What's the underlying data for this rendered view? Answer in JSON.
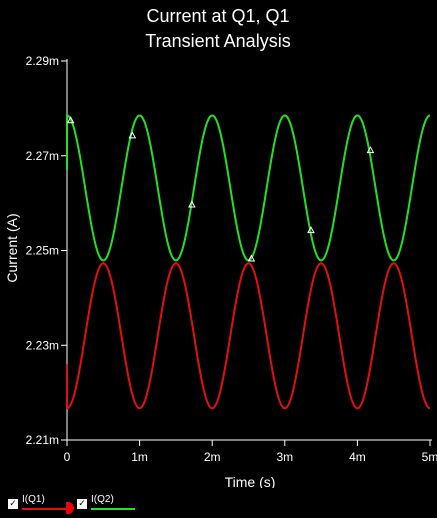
{
  "chart_data": {
    "type": "line",
    "title_line1": "Current at Q1, Q1",
    "title_line2": "Transient Analysis",
    "xlabel": "Time (s)",
    "ylabel": "Current (A)",
    "xlim": [
      0,
      5
    ],
    "ylim": [
      2.21,
      2.29
    ],
    "x_unit": "ms",
    "x_ticks": [
      {
        "value": 0,
        "label": "0"
      },
      {
        "value": 1,
        "label": "1m"
      },
      {
        "value": 2,
        "label": "2m"
      },
      {
        "value": 3,
        "label": "3m"
      },
      {
        "value": 4,
        "label": "4m"
      },
      {
        "value": 5,
        "label": "5m"
      }
    ],
    "y_ticks": [
      {
        "value": 2.29,
        "label": "2.29m"
      },
      {
        "value": 2.27,
        "label": "2.27m"
      },
      {
        "value": 2.25,
        "label": "2.25m"
      },
      {
        "value": 2.23,
        "label": "2.23m"
      },
      {
        "value": 2.21,
        "label": "2.21m"
      }
    ],
    "grid": false,
    "series": [
      {
        "name": "I(Q1)",
        "color": "#e01010",
        "form": "sine",
        "center": 2.232,
        "amplitude": 0.0153,
        "period": 1.0,
        "phase_peak": 0.5,
        "start_value": 2.226,
        "markers": []
      },
      {
        "name": "I(Q2)",
        "color": "#20e020",
        "form": "sine",
        "center": 2.2632,
        "amplitude": 0.0153,
        "period": 1.0,
        "phase_peak": 0.0,
        "start_value": 2.267,
        "markers": [
          {
            "x": 0.05,
            "y": 2.2775
          },
          {
            "x": 0.9,
            "y": 2.2743
          },
          {
            "x": 1.72,
            "y": 2.2597
          },
          {
            "x": 2.54,
            "y": 2.2483
          },
          {
            "x": 3.36,
            "y": 2.2543
          },
          {
            "x": 4.18,
            "y": 2.2712
          }
        ]
      }
    ]
  },
  "legend": {
    "items": [
      {
        "label": "I(Q1)",
        "color": "#e01010",
        "checked": "✓"
      },
      {
        "label": "I(Q2)",
        "color": "#20e020",
        "checked": "✓"
      }
    ]
  }
}
